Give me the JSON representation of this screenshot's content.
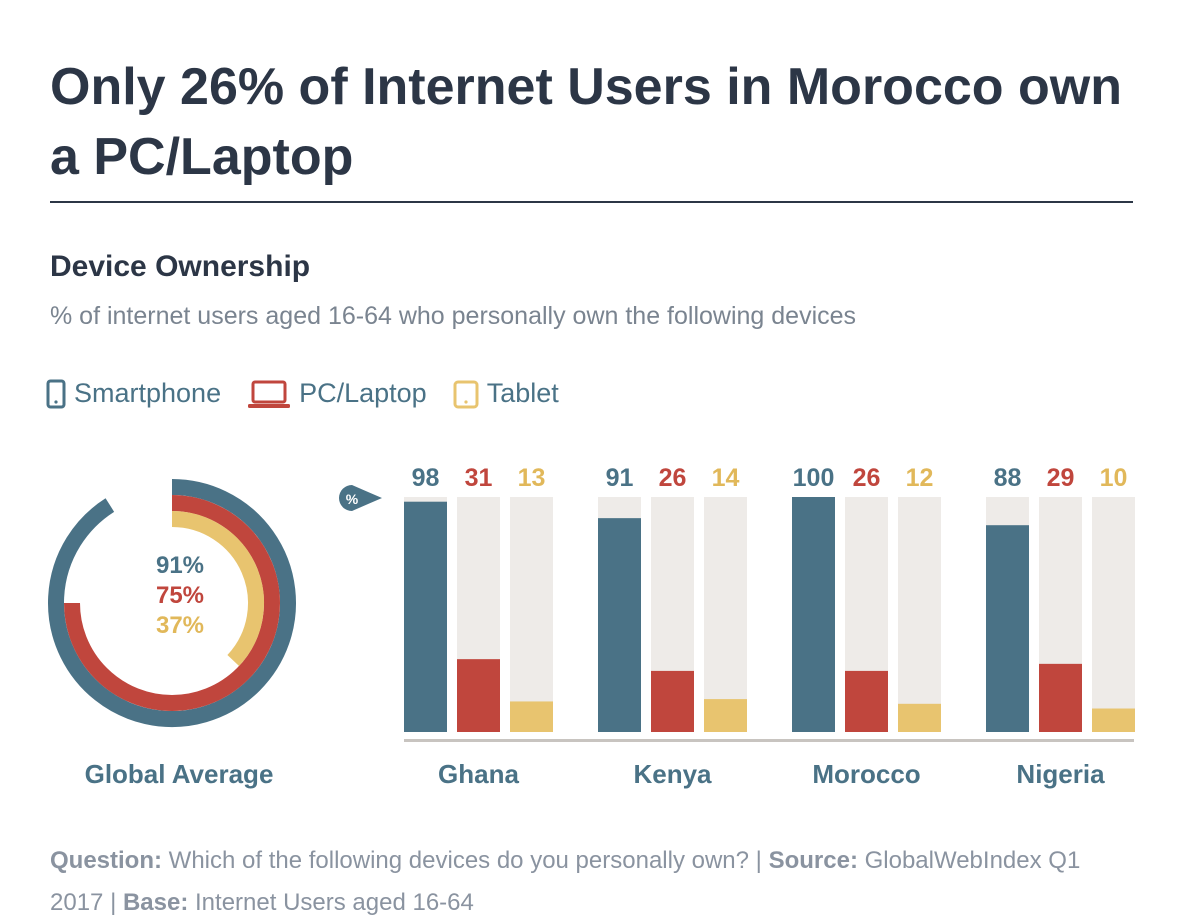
{
  "header": {
    "title": "Only 26% of Internet Users in Morocco own a PC/Laptop",
    "subtitle": "Device Ownership",
    "description": "% of internet users aged 16-64 who personally own the following devices"
  },
  "legend": [
    {
      "label": "Smartphone",
      "icon": "smartphone-icon",
      "color": "#4a7286"
    },
    {
      "label": "PC/Laptop",
      "icon": "laptop-icon",
      "color": "#c0463d"
    },
    {
      "label": "Tablet",
      "icon": "tablet-icon",
      "color": "#e8c46f"
    }
  ],
  "colors": {
    "smartphone": "#4a7286",
    "pc": "#c0463d",
    "tablet": "#e8c46f",
    "track": "#eeebe8",
    "axis": "#c8c4c0",
    "category_label": "#4a7286"
  },
  "chart_data": [
    {
      "type": "donut",
      "category": "Global Average",
      "series": [
        {
          "name": "Smartphone",
          "value": 91,
          "label": "91%"
        },
        {
          "name": "PC/Laptop",
          "value": 75,
          "label": "75%"
        },
        {
          "name": "Tablet",
          "value": 37,
          "label": "37%"
        }
      ]
    },
    {
      "type": "bar",
      "axis_badge": "%",
      "ylim": [
        0,
        100
      ],
      "categories": [
        "Ghana",
        "Kenya",
        "Morocco",
        "Nigeria"
      ],
      "series": [
        {
          "name": "Smartphone",
          "values": [
            98,
            91,
            100,
            88
          ]
        },
        {
          "name": "PC/Laptop",
          "values": [
            31,
            26,
            26,
            29
          ]
        },
        {
          "name": "Tablet",
          "values": [
            13,
            14,
            12,
            10
          ]
        }
      ]
    }
  ],
  "footer": {
    "question_label": "Question:",
    "question_text": "Which of the following devices do you personally own?",
    "sep1": "|",
    "source_label": "Source:",
    "source_text": "GlobalWebIndex Q1 2017",
    "sep2": "|",
    "base_label": "Base:",
    "base_text": "Internet Users aged 16-64"
  }
}
